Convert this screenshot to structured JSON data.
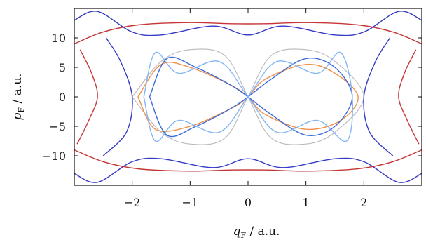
{
  "chart_data": {
    "type": "line",
    "title": "",
    "xlabel_var": "q",
    "xlabel_sub": "F",
    "xlabel_unit": " / a.u.",
    "ylabel_var": "p",
    "ylabel_sub": "F",
    "ylabel_unit": " / a.u.",
    "xlim": [
      -3.0,
      3.0
    ],
    "ylim": [
      -15,
      15
    ],
    "x_ticks": [
      -2,
      -1,
      0,
      1,
      2
    ],
    "x_tick_labels": [
      "−2",
      "−1",
      "0",
      "1",
      "2"
    ],
    "y_ticks": [
      10,
      5,
      0,
      -5,
      -10
    ],
    "y_tick_labels": [
      "10",
      "5",
      "0",
      "−5",
      "−10"
    ],
    "grid": false,
    "legend": "none",
    "colors": {
      "gray": "#a8a8a8",
      "orange": "#f08a3c",
      "blue": "#2f62d8",
      "light_blue": "#7eb2f2",
      "dark_blue": "#2a2fc4",
      "red": "#c22a2a"
    },
    "series": [
      {
        "color_key": "gray",
        "x": [
          -2.0,
          -1.5,
          -1.0,
          -0.4,
          0.0,
          0.4,
          1.0,
          1.5,
          2.0,
          1.5,
          1.0,
          0.4,
          0.0,
          -0.4,
          -1.0,
          -1.5,
          -2.0
        ],
        "y": [
          0,
          6,
          8,
          7,
          0,
          -7,
          -8,
          -6,
          0,
          6,
          8,
          7,
          0,
          -7,
          -8,
          -6,
          0
        ]
      },
      {
        "color_key": "orange",
        "x": [
          -1.9,
          -1.5,
          -1.0,
          -0.3,
          0.0,
          0.3,
          1.0,
          1.6,
          1.9,
          1.5,
          1.0,
          0.3,
          0.0,
          -0.3,
          -1.0,
          -1.6,
          -1.9
        ],
        "y": [
          0,
          5.5,
          5,
          2,
          0,
          -3,
          -5.5,
          -4,
          0,
          4,
          5.5,
          3,
          0,
          -2,
          -5,
          -5.5,
          0
        ]
      },
      {
        "color_key": "blue",
        "x": [
          -1.7,
          -1.4,
          -0.9,
          -0.3,
          0.0,
          0.4,
          1.0,
          1.5,
          1.8,
          1.5,
          1.0,
          0.4,
          0.0,
          -0.3,
          -0.9,
          -1.4,
          -1.7
        ],
        "y": [
          0,
          6.5,
          5,
          2,
          0,
          -3,
          -6.5,
          -5,
          0,
          5,
          6.5,
          3,
          0,
          -2,
          -5,
          -6.5,
          0
        ]
      },
      {
        "color_key": "light_blue",
        "x": [
          -1.8,
          -1.6,
          -1.2,
          -0.5,
          0.0,
          0.5,
          1.2,
          1.7,
          1.8,
          1.6,
          1.2,
          0.5,
          0.0,
          -0.5,
          -1.2,
          -1.6,
          -1.8
        ],
        "y": [
          0,
          7.5,
          4,
          6,
          0,
          -6,
          -4,
          -7.5,
          0,
          7.5,
          4,
          6,
          0,
          -6,
          -4,
          -7.5,
          0
        ]
      },
      {
        "color_key": "dark_blue",
        "x": [
          -3.0,
          -2.6,
          -2.0,
          -1.5,
          -0.6,
          0.0,
          0.6,
          1.5,
          2.0,
          2.6,
          3.0
        ],
        "y": [
          13,
          14.5,
          11,
          10.5,
          12,
          10.5,
          12,
          10.5,
          11,
          14.5,
          13
        ]
      },
      {
        "color_key": "dark_blue",
        "x": [
          -3.0,
          -2.6,
          -2.0,
          -1.5,
          -0.6,
          0.0,
          0.6,
          1.5,
          2.0,
          2.6,
          3.0
        ],
        "y": [
          -13,
          -14.5,
          -11,
          -10.5,
          -12,
          -10.5,
          -12,
          -10.5,
          -11,
          -14.5,
          -13
        ]
      },
      {
        "color_key": "dark_blue",
        "x": [
          -2.45,
          -2.2,
          -2.0,
          -2.1,
          -2.5
        ],
        "y": [
          10,
          6,
          0,
          -6,
          -10
        ]
      },
      {
        "color_key": "dark_blue",
        "x": [
          2.45,
          2.2,
          2.0,
          2.1,
          2.5
        ],
        "y": [
          10,
          6,
          0,
          -6,
          -10
        ]
      },
      {
        "color_key": "red",
        "x": [
          -3.0,
          -2.5,
          -1.9,
          -1.0,
          -0.3,
          0.3,
          1.0,
          1.9,
          2.5,
          3.0
        ],
        "y": [
          9,
          11,
          12.2,
          12.6,
          12.4,
          12.4,
          12.6,
          12.2,
          11,
          9
        ]
      },
      {
        "color_key": "red",
        "x": [
          -3.0,
          -2.5,
          -1.9,
          -1.0,
          -0.3,
          0.3,
          1.0,
          1.9,
          2.5,
          3.0
        ],
        "y": [
          -9,
          -11,
          -12.2,
          -12.6,
          -12.4,
          -12.4,
          -12.6,
          -12.2,
          -11,
          -9
        ]
      },
      {
        "color_key": "red",
        "x": [
          -2.9,
          -2.7,
          -2.6,
          -2.75,
          -2.95
        ],
        "y": [
          8,
          4,
          0,
          -4,
          -8
        ]
      },
      {
        "color_key": "red",
        "x": [
          2.9,
          2.7,
          2.6,
          2.75,
          2.95
        ],
        "y": [
          8,
          4,
          0,
          -4,
          -8
        ]
      }
    ]
  }
}
